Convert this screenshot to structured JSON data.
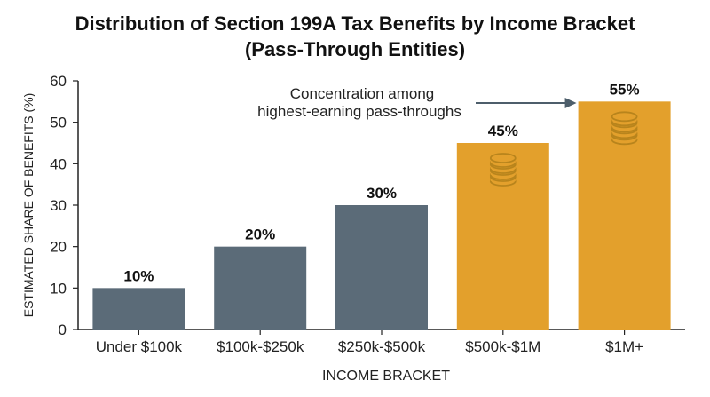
{
  "chart_data": {
    "type": "bar",
    "title_lines": [
      "Distribution of Section 199A Tax Benefits by Income Bracket",
      "(Pass-Through Entities)"
    ],
    "xlabel": "INCOME BRACKET",
    "ylabel": "ESTIMATED SHARE OF BENEFITS (%)",
    "ylim": [
      0,
      60
    ],
    "yticks": [
      0,
      10,
      20,
      30,
      40,
      50,
      60
    ],
    "categories": [
      "Under $100k",
      "$100k-$250k",
      "$250k-$500k",
      "$500k-$1M",
      "$1M+"
    ],
    "values": [
      10,
      20,
      30,
      45,
      55
    ],
    "data_labels": [
      "10%",
      "20%",
      "30%",
      "45%",
      "55%"
    ],
    "highlighted": [
      false,
      false,
      false,
      true,
      true
    ],
    "colors": {
      "base": "#5b6b78",
      "highlight": "#e3a02c",
      "coin": "#b8841c",
      "axis": "#222222"
    },
    "annotation": {
      "lines": [
        "Concentration among",
        "highest-earning pass-throughs"
      ],
      "points_to": "$1M+"
    },
    "coin_icons": [
      "$500k-$1M",
      "$1M+"
    ],
    "grid": false,
    "legend": "none"
  }
}
